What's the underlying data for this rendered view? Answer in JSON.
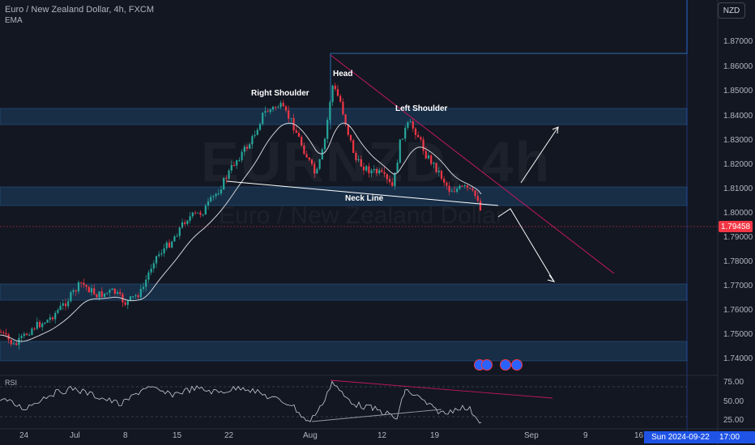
{
  "header": {
    "symbol_line": "Euro / New Zealand Dollar, 4h, FXCM",
    "indicator": "EMA",
    "currency_button": "NZD",
    "watermark_ticker": "EURNZD, 4h",
    "watermark_name": "Euro / New Zealand Dollar"
  },
  "annotations": {
    "head": "Head",
    "right_shoulder": "Right Shoulder",
    "left_shoulder": "Left Shoulder",
    "neck_line": "Neck Line"
  },
  "price_axis": {
    "labels": [
      "1.87000",
      "1.86000",
      "1.85000",
      "1.84000",
      "1.83000",
      "1.82000",
      "1.81000",
      "1.80000",
      "1.79000",
      "1.78000",
      "1.77000",
      "1.76000",
      "1.75000",
      "1.74000"
    ],
    "current_price": "1.79458"
  },
  "rsi": {
    "label": "RSI",
    "labels": [
      "75.00",
      "50.00",
      "25.00"
    ]
  },
  "time_axis": {
    "labels": [
      "24",
      "Jul",
      "8",
      "15",
      "22",
      "Aug",
      "12",
      "19",
      "Sep",
      "9",
      "16"
    ],
    "cursor_date": "Sun 2024-09-22",
    "cursor_time": "17:00"
  },
  "colors": {
    "background": "#131722",
    "up": "#26a69a",
    "down": "#f23645",
    "zone": "#1c3a5c",
    "accent": "#2962ff"
  }
}
